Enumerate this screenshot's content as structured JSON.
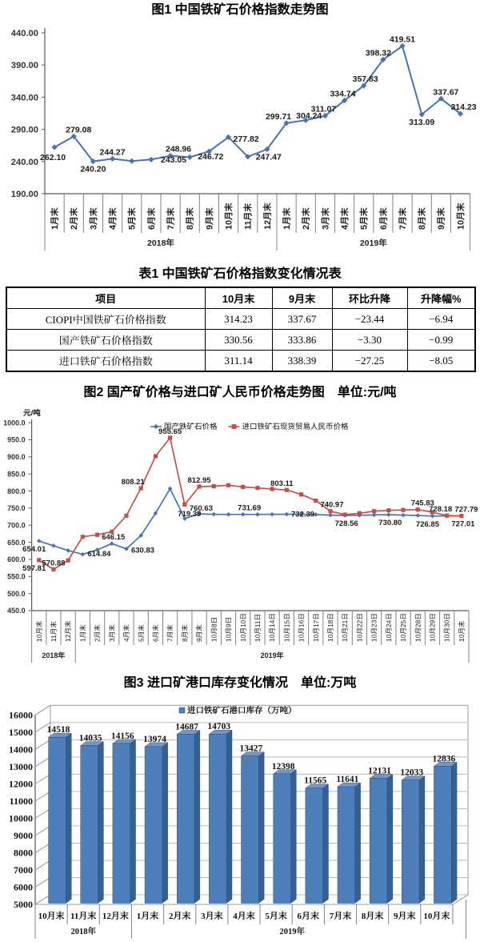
{
  "page": {
    "background": "#ffffff"
  },
  "figure1": {
    "title": "图1 中国铁矿石价格指数走势图"
  },
  "table1": {
    "title": "表1 中国铁矿石价格指数变化情况表",
    "columns": [
      "项目",
      "10月末",
      "9月末",
      "环比升降",
      "升降幅%"
    ],
    "rows": [
      [
        "CIOPI中国铁矿石价格指数",
        "314.23",
        "337.67",
        "−23.44",
        "−6.94"
      ],
      [
        "国产铁矿石价格指数",
        "330.56",
        "333.86",
        "−3.30",
        "−0.99"
      ],
      [
        "进口铁矿石价格指数",
        "311.14",
        "338.39",
        "−27.25",
        "−8.05"
      ]
    ]
  },
  "figure2": {
    "title": "图2 国产矿价格与进口矿人民币价格走势图　单位:元/吨",
    "y_axis_unit": "元/吨",
    "legend": [
      "国产铁矿石价格",
      "进口铁矿石现货贸易人民币价格"
    ]
  },
  "figure3": {
    "title": "图3 进口矿港口库存变化情况　单位:万吨",
    "legend": "进口铁矿石港口库存（万吨）"
  },
  "colors": {
    "line_blue": "#4674b1",
    "line_red": "#c0504d",
    "bar_blue": "#4f7fba"
  },
  "chart_data": [
    {
      "type": "line",
      "title": "图1 中国铁矿石价格指数走势图",
      "categories": [
        "1月末",
        "2月末",
        "3月末",
        "4月末",
        "5月末",
        "6月末",
        "7月末",
        "8月末",
        "9月末",
        "10月末",
        "11月末",
        "12月末",
        "1月末",
        "2月末",
        "3月末",
        "4月末",
        "5月末",
        "6月末",
        "7月末",
        "8月末",
        "9月末",
        "10月末"
      ],
      "x_groups": [
        {
          "label": "2018年",
          "count": 12
        },
        {
          "label": "2019年",
          "count": 10
        }
      ],
      "ylim": [
        190,
        440
      ],
      "ytick_labels": [
        "440.00",
        "390.00",
        "340.00",
        "290.00",
        "240.00",
        "190.00"
      ],
      "grid": false,
      "legend_position": "none",
      "series": [
        {
          "name": "中国铁矿石价格指数",
          "color": "#4674b1",
          "marker": "diamond",
          "values": [
            262.1,
            279.08,
            240.2,
            244.27,
            240.7,
            243.05,
            248.96,
            246.72,
            255.8,
            277.82,
            247.47,
            259.0,
            299.71,
            304.24,
            311.07,
            334.74,
            357.83,
            398.32,
            419.51,
            313.09,
            337.67,
            314.23
          ],
          "point_labels": [
            {
              "i": 0,
              "text": "262.10",
              "pos": "below",
              "dx": -2,
              "dy": 3
            },
            {
              "i": 1,
              "text": "279.08",
              "pos": "above",
              "dx": 6
            },
            {
              "i": 2,
              "text": "240.20",
              "pos": "below"
            },
            {
              "i": 3,
              "text": "244.27",
              "pos": "above"
            },
            {
              "i": 5,
              "text": "243.05",
              "pos": "right",
              "dx": 6,
              "dy": 0
            },
            {
              "i": 6,
              "text": "248.96",
              "pos": "above",
              "dx": 10
            },
            {
              "i": 7,
              "text": "246.72",
              "pos": "right",
              "dx": 4,
              "dy": -1
            },
            {
              "i": 9,
              "text": "277.82",
              "pos": "right",
              "dy": 2
            },
            {
              "i": 10,
              "text": "247.47",
              "pos": "right",
              "dx": 4,
              "dy": 0
            },
            {
              "i": 12,
              "text": "299.71",
              "pos": "above",
              "dx": -10
            },
            {
              "i": 13,
              "text": "304.24",
              "pos": "above",
              "dx": 4,
              "dy": 3
            },
            {
              "i": 14,
              "text": "311.07",
              "pos": "above",
              "dx": -2
            },
            {
              "i": 15,
              "text": "334.74",
              "pos": "above",
              "dx": -2
            },
            {
              "i": 16,
              "text": "357.83",
              "pos": "above",
              "dx": 2
            },
            {
              "i": 17,
              "text": "398.32",
              "pos": "above",
              "dx": -6
            },
            {
              "i": 18,
              "text": "419.51",
              "pos": "above"
            },
            {
              "i": 19,
              "text": "313.09",
              "pos": "below"
            },
            {
              "i": 20,
              "text": "337.67",
              "pos": "above",
              "dx": 6
            },
            {
              "i": 21,
              "text": "314.23",
              "pos": "above",
              "dx": 4
            }
          ]
        }
      ]
    },
    {
      "type": "line",
      "title": "图2 国产矿价格与进口矿人民币价格走势图　单位:元/吨",
      "y_axis_unit": "元/吨",
      "categories": [
        "10月末",
        "11月末",
        "12月末",
        "1月末",
        "2月末",
        "3月末",
        "4月末",
        "5月末",
        "6月末",
        "7月末",
        "8月末",
        "9月末",
        "10月8日",
        "10月9日",
        "10月10日",
        "10月11日",
        "10月14日",
        "10月15日",
        "10月16日",
        "10月17日",
        "10月18日",
        "10月21日",
        "10月22日",
        "10月23日",
        "10月24日",
        "10月25日",
        "10月28日",
        "10月29日",
        "10月30日",
        "10月末"
      ],
      "x_groups": [
        {
          "label": "2018年",
          "count": 3
        },
        {
          "label": "2019年",
          "count": 27
        }
      ],
      "ylim": [
        450,
        1000
      ],
      "ytick_labels": [
        "1000.0",
        "950.0",
        "900.0",
        "850.0",
        "800.0",
        "750.0",
        "700.0",
        "650.0",
        "600.0",
        "550.0",
        "500.0",
        "450.0"
      ],
      "grid": false,
      "legend_position": "top",
      "series": [
        {
          "name": "国产铁矿石价格",
          "color": "#4674b1",
          "marker": "diamond",
          "values": [
            654.01,
            640,
            626,
            614.84,
            628,
            646.15,
            630.83,
            670,
            735,
            807,
            719.39,
            733,
            732,
            731.5,
            731.69,
            731.5,
            731.8,
            732,
            732.39,
            731,
            729.5,
            728.56,
            729,
            730,
            730.8,
            729.5,
            728.5,
            726.85,
            727,
            727.79
          ],
          "point_labels": [
            {
              "i": 0,
              "text": "654.01",
              "pos": "below",
              "dx": -6
            },
            {
              "i": 3,
              "text": "614.84",
              "pos": "right",
              "dy": -1
            },
            {
              "i": 5,
              "text": "646.15",
              "pos": "above",
              "dx": 2
            },
            {
              "i": 6,
              "text": "630.83",
              "pos": "right",
              "dy": 1
            },
            {
              "i": 10,
              "text": "719.39",
              "pos": "above",
              "dx": 6,
              "dy": 2
            },
            {
              "i": 14,
              "text": "731.69",
              "pos": "above",
              "dx": 8
            },
            {
              "i": 18,
              "text": "732.39",
              "pos": "above",
              "dx": 2,
              "dy": 8
            },
            {
              "i": 21,
              "text": "728.56",
              "pos": "below",
              "dx": 2
            },
            {
              "i": 24,
              "text": "730.80",
              "pos": "below",
              "dx": 2
            },
            {
              "i": 27,
              "text": "726.85",
              "pos": "below",
              "dx": -6
            },
            {
              "i": 29,
              "text": "727.79",
              "pos": "above",
              "dx": 6
            }
          ]
        },
        {
          "name": "进口铁矿石现货贸易人民币价格",
          "color": "#c0504d",
          "marker": "square",
          "values": [
            597.81,
            570.88,
            597,
            666,
            672,
            681,
            728,
            808.21,
            902,
            955.65,
            760.63,
            812.95,
            814,
            817,
            812,
            809,
            806,
            803.11,
            790,
            772,
            740.97,
            731,
            735,
            741,
            743.5,
            744.5,
            745.83,
            738,
            728.18,
            727.01
          ],
          "point_labels": [
            {
              "i": 0,
              "text": "597.81",
              "pos": "below",
              "dx": -6
            },
            {
              "i": 1,
              "text": "570.88",
              "pos": "above"
            },
            {
              "i": 7,
              "text": "808.21",
              "pos": "above",
              "dx": -10
            },
            {
              "i": 9,
              "text": "955.65",
              "pos": "above"
            },
            {
              "i": 10,
              "text": "760.63",
              "pos": "right",
              "dy": 4
            },
            {
              "i": 11,
              "text": "812.95",
              "pos": "above"
            },
            {
              "i": 17,
              "text": "803.11",
              "pos": "above",
              "dx": -6
            },
            {
              "i": 20,
              "text": "740.97",
              "pos": "above",
              "dx": 2
            },
            {
              "i": 26,
              "text": "745.83",
              "pos": "above",
              "dx": 6
            },
            {
              "i": 28,
              "text": "728.18",
              "pos": "above",
              "dx": -8
            },
            {
              "i": 29,
              "text": "727.01",
              "pos": "below",
              "dx": 2
            }
          ]
        }
      ]
    },
    {
      "type": "bar3d",
      "title": "图3 进口矿港口库存变化情况　单位:万吨",
      "legend": "进口铁矿石港口库存（万吨）",
      "categories": [
        "10月末",
        "11月末",
        "12月末",
        "1月末",
        "2月末",
        "3月末",
        "4月末",
        "5月末",
        "6月末",
        "7月末",
        "8月末",
        "9月末",
        "10月末"
      ],
      "x_groups": [
        {
          "label": "2018年",
          "count": 3
        },
        {
          "label": "2019年",
          "count": 10
        }
      ],
      "ylim": [
        5000,
        16000
      ],
      "ytick_labels": [
        "16000",
        "15000",
        "14000",
        "13000",
        "12000",
        "11000",
        "10000",
        "9000",
        "8000",
        "7000",
        "6000",
        "5000"
      ],
      "grid": true,
      "values": [
        14518,
        14035,
        14156,
        13974,
        14687,
        14703,
        13427,
        12398,
        11565,
        11641,
        12131,
        12033,
        12836
      ],
      "bar_colors": {
        "front": "#4f7fba",
        "side": "#35608f",
        "top": "#7097c7"
      },
      "value_labels": [
        "14518",
        "14035",
        "14156",
        "13974",
        "14687",
        "14703",
        "13427",
        "12398",
        "11565",
        "11641",
        "12131",
        "12033",
        "12836"
      ]
    },
    {
      "type": "table",
      "title": "表1 中国铁矿石价格指数变化情况表",
      "columns": [
        "项目",
        "10月末",
        "9月末",
        "环比升降",
        "升降幅%"
      ],
      "rows": [
        [
          "CIOPI中国铁矿石价格指数",
          "314.23",
          "337.67",
          "−23.44",
          "−6.94"
        ],
        [
          "国产铁矿石价格指数",
          "330.56",
          "333.86",
          "−3.30",
          "−0.99"
        ],
        [
          "进口铁矿石价格指数",
          "311.14",
          "338.39",
          "−27.25",
          "−8.05"
        ]
      ]
    }
  ]
}
